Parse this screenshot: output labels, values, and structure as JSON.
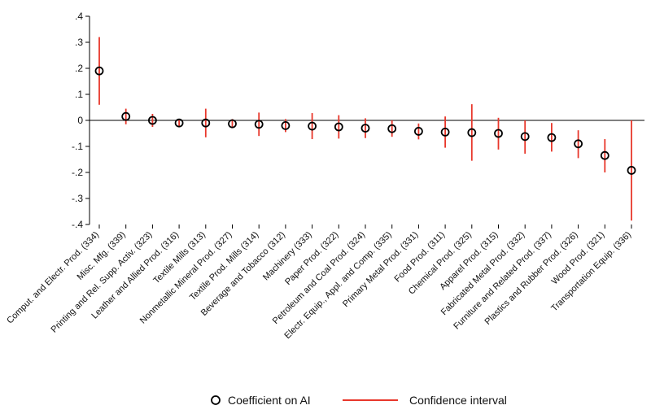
{
  "chart_data": {
    "type": "scatter",
    "title": "",
    "xlabel": "",
    "ylabel": "",
    "ylim": [
      -0.4,
      0.4
    ],
    "yticks": [
      0.4,
      0.3,
      0.2,
      0.1,
      0,
      -0.1,
      -0.2,
      -0.3,
      -0.4
    ],
    "ytick_labels": [
      ".4",
      ".3",
      ".2",
      ".1",
      "0",
      "-.1",
      "-.2",
      "-.3",
      "-.4"
    ],
    "zero_line": true,
    "grid": false,
    "legend_position": "bottom",
    "colors": {
      "marker": "#000000",
      "ci": "#e8372b",
      "axis": "#000000"
    },
    "categories": [
      "Comput. and Electr. Prod. (334)",
      "Misc. Mfg. (339)",
      "Printing and Rel. Supp. Activ. (323)",
      "Leather and Allied Prod. (316)",
      "Textile Mills (313)",
      "Nonmetallic Mineral Prod. (327)",
      "Textile Prod. Mills (314)",
      "Beverage and Tobacco (312)",
      "Machinery (333)",
      "Paper Prod. (322)",
      "Petroleum and Coal Prod. (324)",
      "Electr. Equip., Appl. and Comp. (335)",
      "Primary Metal Prod. (331)",
      "Food Prod. (311)",
      "Chemical Prod. (325)",
      "Apparel Prod. (315)",
      "Fabricated Metal Prod. (332)",
      "Furniture and Related Prod. (337)",
      "Plastics and Rubber Prod. (326)",
      "Wood Prod. (321)",
      "Transportation Equip. (336)"
    ],
    "series": [
      {
        "name": "Coefficient on AI",
        "values": [
          0.19,
          0.015,
          0.0,
          -0.01,
          -0.01,
          -0.013,
          -0.015,
          -0.02,
          -0.022,
          -0.025,
          -0.03,
          -0.032,
          -0.042,
          -0.045,
          -0.047,
          -0.05,
          -0.062,
          -0.066,
          -0.09,
          -0.135,
          -0.192
        ]
      },
      {
        "name": "Confidence interval",
        "lower": [
          0.06,
          -0.015,
          -0.025,
          -0.022,
          -0.065,
          -0.03,
          -0.06,
          -0.045,
          -0.072,
          -0.07,
          -0.068,
          -0.063,
          -0.073,
          -0.105,
          -0.155,
          -0.112,
          -0.128,
          -0.12,
          -0.145,
          -0.2,
          -0.385
        ],
        "upper": [
          0.32,
          0.045,
          0.025,
          0.002,
          0.045,
          0.005,
          0.03,
          0.005,
          0.028,
          0.02,
          0.008,
          0.0,
          -0.012,
          0.015,
          0.062,
          0.01,
          0.0,
          -0.01,
          -0.038,
          -0.072,
          0.0
        ]
      }
    ]
  }
}
